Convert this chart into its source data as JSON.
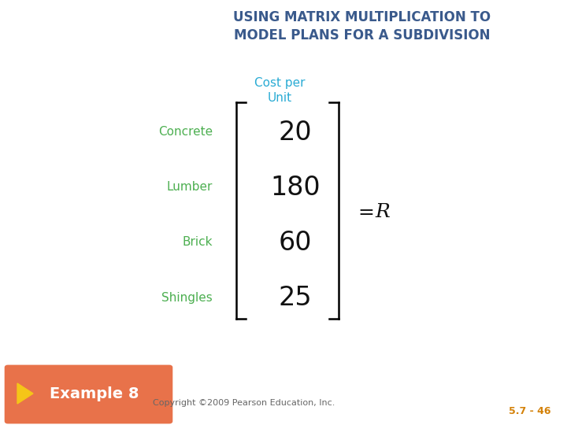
{
  "title_example": "Example 8",
  "title_main_line1": "USING MATRIX MULTIPLICATION TO",
  "title_main_line2": "MODEL PLANS FOR A SUBDIVISION",
  "header_label": "Cost per\nUnit",
  "row_labels": [
    "Concrete",
    "Lumber",
    "Brick",
    "Shingles"
  ],
  "values": [
    "20",
    "180",
    "60",
    "25"
  ],
  "equals_R": "= R",
  "copyright": "Copyright ©2009 Pearson Education, Inc.",
  "page_ref": "5.7 - 46",
  "header_bg": "#E8724A",
  "header_text_color": "#FFFFFF",
  "arrow_color": "#F5C518",
  "title_color": "#3A5A8C",
  "header_color": "#29ABD4",
  "row_label_color": "#4CAF50",
  "value_color": "#111111",
  "equals_color": "#111111",
  "copyright_color": "#666666",
  "page_ref_color": "#D4820A",
  "bg_color": "#FFFFFF"
}
